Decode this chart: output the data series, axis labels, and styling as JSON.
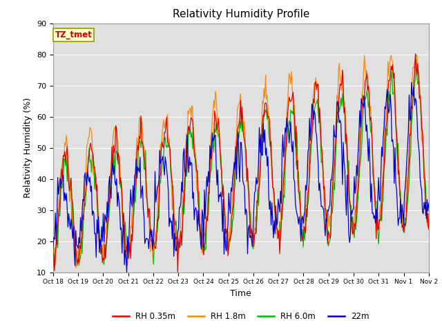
{
  "title": "Relativity Humidity Profile",
  "xlabel": "Time",
  "ylabel": "Relativity Humidity (%)",
  "ylim": [
    10,
    90
  ],
  "annotation_text": "TZ_tmet",
  "annotation_bg": "#ffffcc",
  "annotation_border": "#aaaaaa",
  "annotation_color": "#cc0000",
  "bg_color": "#e0e0e0",
  "line_colors": {
    "RH 0.35m": "#dd0000",
    "RH 1.8m": "#ff8800",
    "RH 6.0m": "#00bb00",
    "22m": "#0000cc"
  },
  "xtick_labels": [
    "Oct 18",
    "Oct 19",
    "Oct 20",
    "Oct 21",
    "Oct 22",
    "Oct 23",
    "Oct 24",
    "Oct 25",
    "Oct 26",
    "Oct 27",
    "Oct 28",
    "Oct 29",
    "Oct 30",
    "Oct 31",
    "Nov 1",
    "Nov 2"
  ],
  "ytick_vals": [
    10,
    20,
    30,
    40,
    50,
    60,
    70,
    80,
    90
  ],
  "n_points": 480,
  "days_total": 15
}
